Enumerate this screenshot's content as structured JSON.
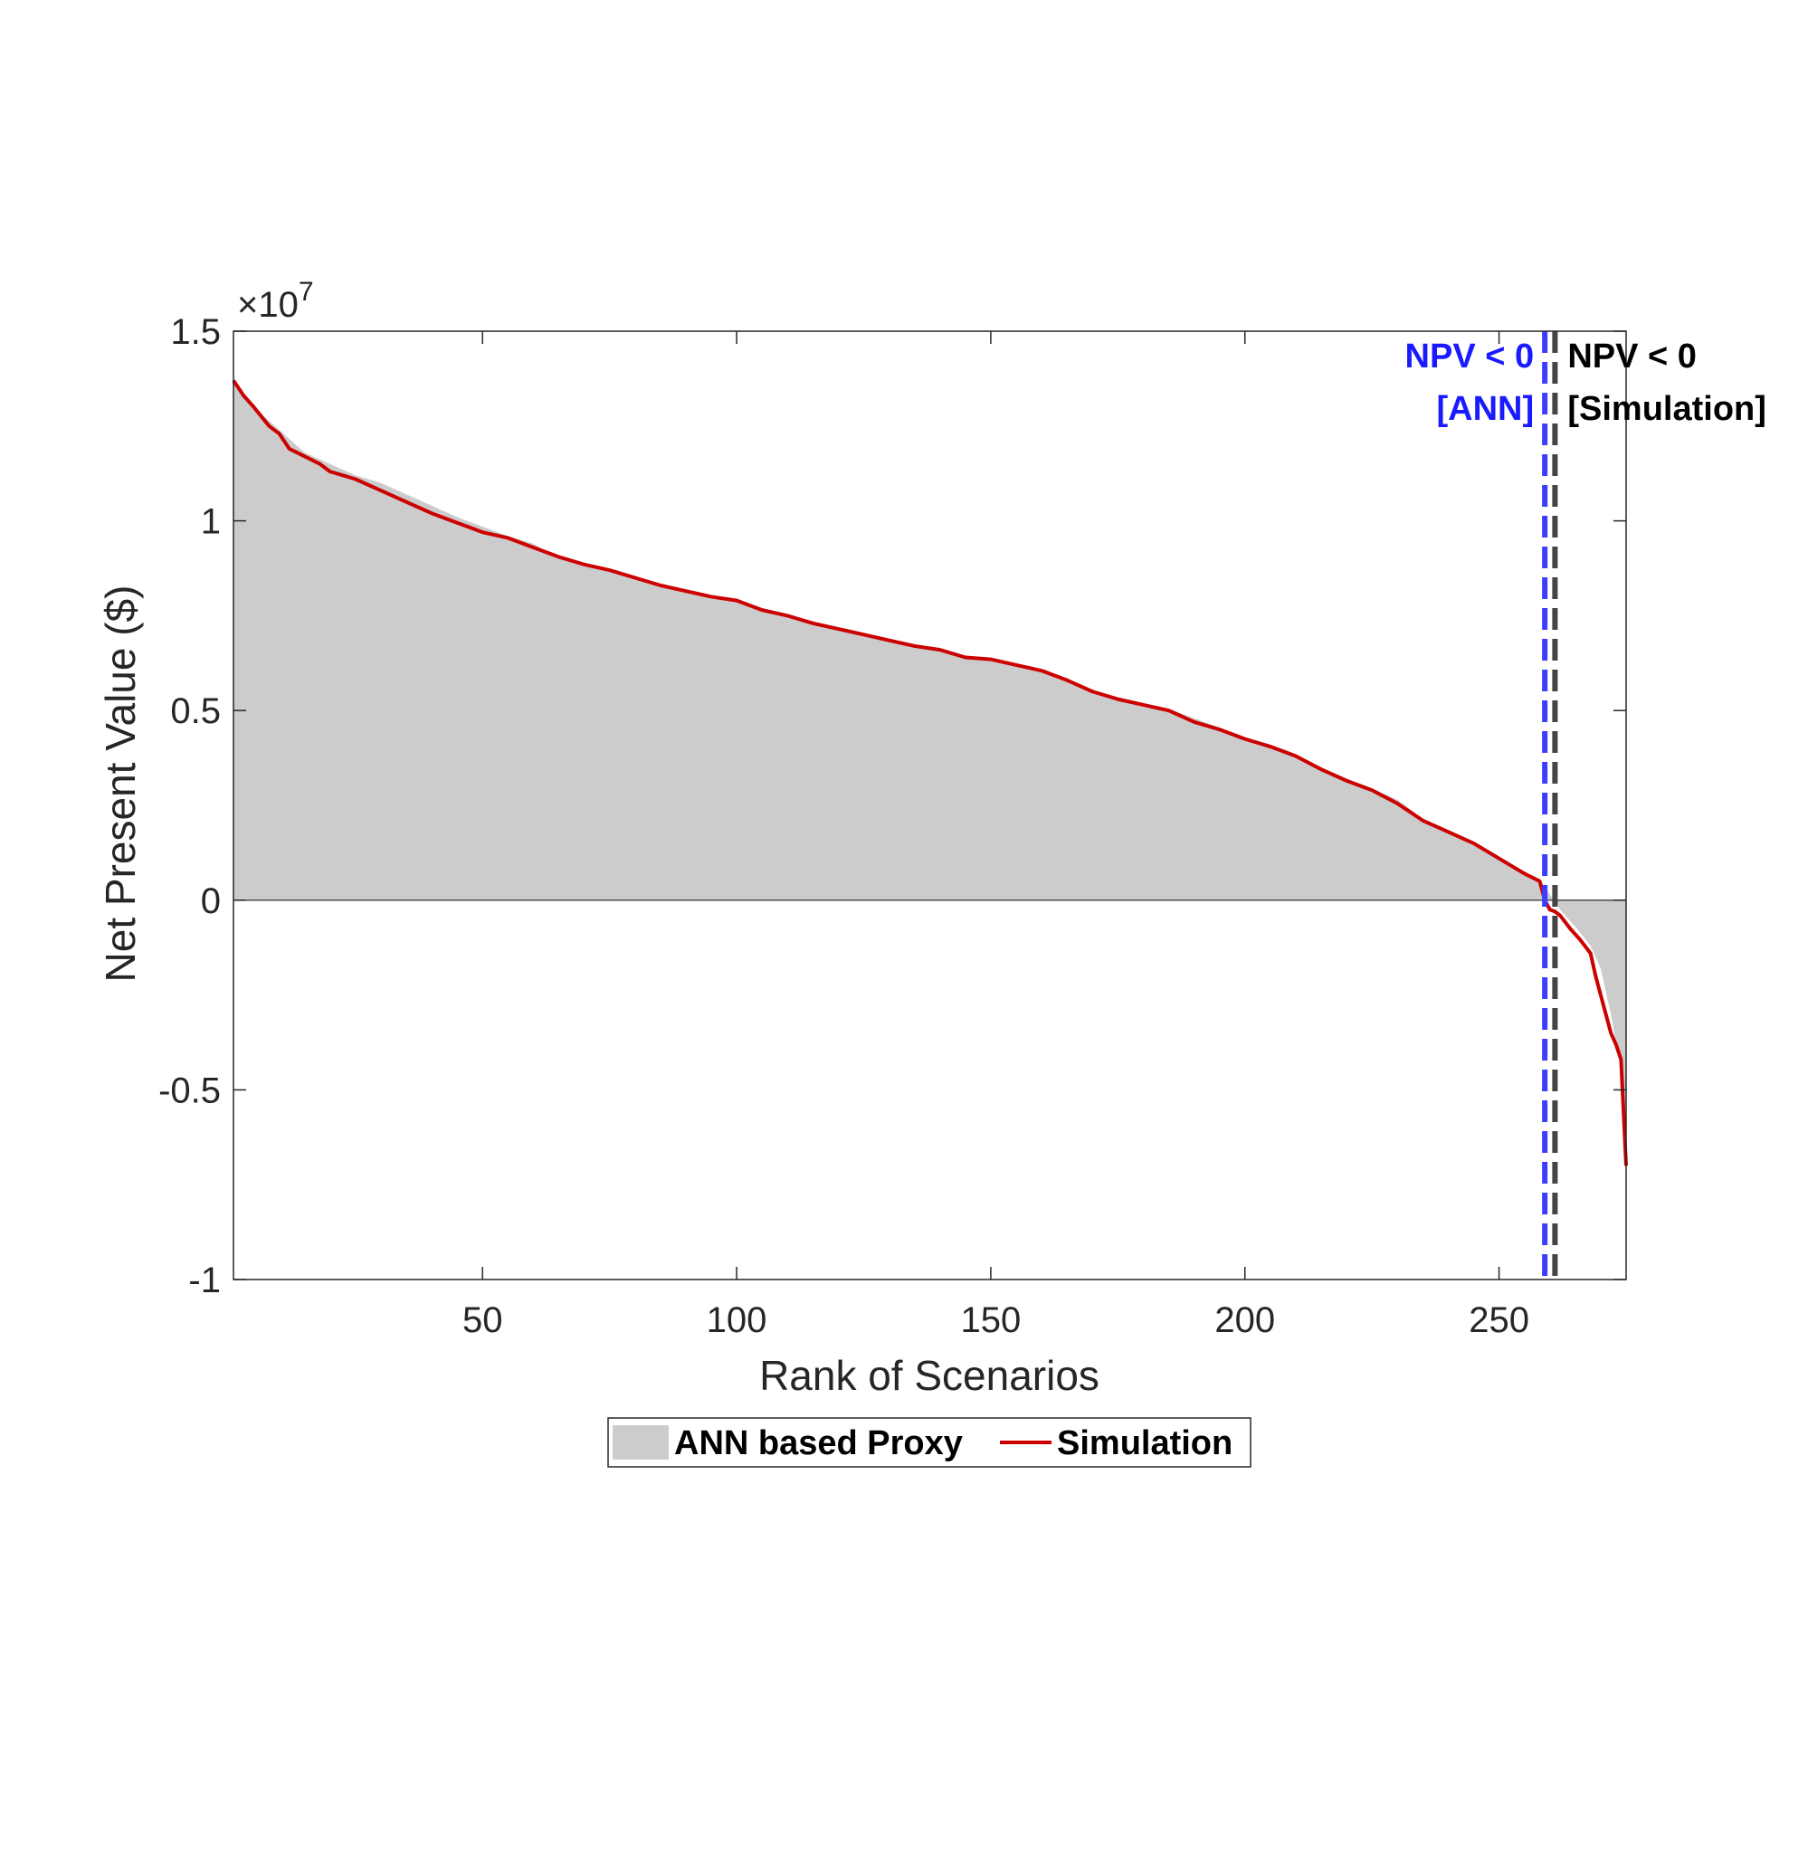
{
  "chart_data": {
    "type": "area",
    "xlabel": "Rank of Scenarios",
    "ylabel": "Net Present Value ($)",
    "y_exponent_label": "×10",
    "y_exponent_power": "7",
    "xlim": [
      1,
      275
    ],
    "ylim": [
      -1,
      1.5
    ],
    "y_multiplier": 10000000,
    "x_ticks": [
      50,
      100,
      150,
      200,
      250
    ],
    "x_tick_labels": [
      "50",
      "100",
      "150",
      "200",
      "250"
    ],
    "y_ticks": [
      -1,
      -0.5,
      0,
      0.5,
      1,
      1.5
    ],
    "y_tick_labels": [
      "-1",
      "-0.5",
      "0",
      "0.5",
      "1",
      "1.5"
    ],
    "grid": false,
    "legend_position": "bottom-outside",
    "series": [
      {
        "name": "ANN based Proxy",
        "kind": "area",
        "color": "#cccccc",
        "x": [
          1,
          5,
          10,
          15,
          20,
          25,
          30,
          35,
          40,
          45,
          50,
          55,
          60,
          65,
          70,
          75,
          80,
          85,
          90,
          95,
          100,
          105,
          110,
          115,
          120,
          125,
          130,
          135,
          140,
          145,
          150,
          155,
          160,
          165,
          170,
          175,
          180,
          185,
          190,
          195,
          200,
          205,
          210,
          215,
          220,
          225,
          230,
          235,
          240,
          245,
          250,
          255,
          258,
          260,
          262,
          265,
          268,
          270,
          272,
          274,
          275
        ],
        "values": [
          1.375,
          1.3,
          1.24,
          1.18,
          1.15,
          1.12,
          1.1,
          1.07,
          1.04,
          1.01,
          0.985,
          0.96,
          0.94,
          0.9,
          0.88,
          0.87,
          0.855,
          0.83,
          0.815,
          0.8,
          0.79,
          0.765,
          0.75,
          0.735,
          0.72,
          0.705,
          0.69,
          0.675,
          0.665,
          0.645,
          0.635,
          0.62,
          0.605,
          0.58,
          0.555,
          0.535,
          0.52,
          0.505,
          0.48,
          0.455,
          0.43,
          0.41,
          0.385,
          0.35,
          0.32,
          0.295,
          0.265,
          0.215,
          0.185,
          0.155,
          0.115,
          0.075,
          0.055,
          0.015,
          -0.025,
          -0.07,
          -0.12,
          -0.18,
          -0.3,
          -0.45,
          -0.7
        ]
      },
      {
        "name": "Simulation",
        "kind": "line",
        "color": "#cc0000",
        "x": [
          1,
          3,
          5,
          8,
          10,
          12,
          15,
          18,
          20,
          25,
          30,
          35,
          40,
          45,
          50,
          55,
          60,
          65,
          70,
          75,
          80,
          85,
          90,
          95,
          100,
          105,
          110,
          115,
          120,
          125,
          130,
          135,
          140,
          145,
          150,
          155,
          160,
          165,
          170,
          175,
          180,
          185,
          190,
          195,
          200,
          205,
          210,
          215,
          220,
          225,
          230,
          235,
          240,
          245,
          250,
          255,
          258,
          259,
          260,
          261,
          262,
          264,
          266,
          268,
          269,
          270,
          271,
          272,
          273,
          274,
          275
        ],
        "values": [
          1.37,
          1.33,
          1.3,
          1.25,
          1.23,
          1.19,
          1.17,
          1.15,
          1.13,
          1.11,
          1.08,
          1.05,
          1.02,
          0.995,
          0.97,
          0.955,
          0.93,
          0.905,
          0.885,
          0.87,
          0.85,
          0.83,
          0.815,
          0.8,
          0.79,
          0.765,
          0.75,
          0.73,
          0.715,
          0.7,
          0.685,
          0.67,
          0.66,
          0.64,
          0.635,
          0.62,
          0.605,
          0.58,
          0.55,
          0.53,
          0.515,
          0.5,
          0.47,
          0.45,
          0.425,
          0.405,
          0.38,
          0.345,
          0.315,
          0.29,
          0.255,
          0.21,
          0.18,
          0.15,
          0.11,
          0.07,
          0.05,
          0.0,
          -0.025,
          -0.03,
          -0.04,
          -0.075,
          -0.105,
          -0.14,
          -0.2,
          -0.25,
          -0.3,
          -0.35,
          -0.38,
          -0.42,
          -0.7
        ]
      }
    ],
    "reference_lines": [
      {
        "x": 259,
        "color": "#3d3dff",
        "style": "dashed",
        "label_line1": "NPV < 0",
        "label_line2": "[ANN]",
        "label_side": "left"
      },
      {
        "x": 261,
        "color": "#444444",
        "style": "dashed",
        "label_line1": "NPV < 0",
        "label_line2": "[Simulation]",
        "label_side": "right"
      }
    ]
  }
}
